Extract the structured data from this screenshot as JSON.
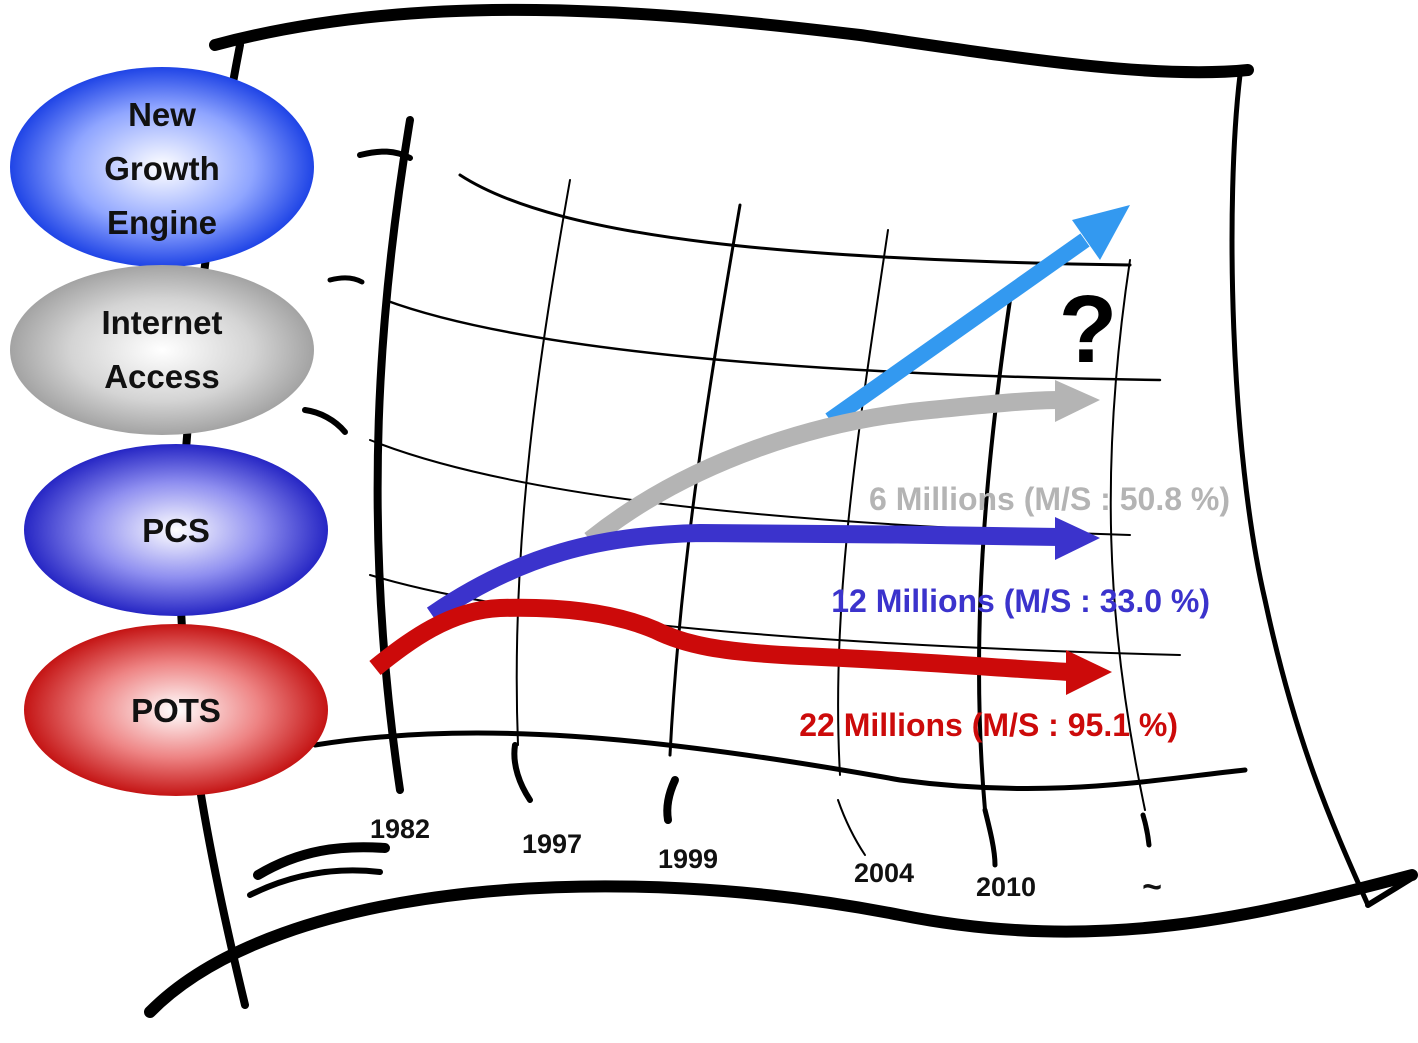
{
  "categories": [
    {
      "id": "new-growth",
      "lines": [
        "New",
        "Growth",
        "Engine"
      ],
      "color": "#3355ee"
    },
    {
      "id": "internet",
      "lines": [
        "Internet",
        "Access"
      ],
      "color": "#a0a0a0"
    },
    {
      "id": "pcs",
      "lines": [
        "PCS"
      ],
      "color": "#3333cc"
    },
    {
      "id": "pots",
      "lines": [
        "POTS"
      ],
      "color": "#cc1111"
    }
  ],
  "years": [
    "1982",
    "1997",
    "1999",
    "2004",
    "2010",
    "~"
  ],
  "callouts": {
    "internet": "6 Millions (M/S : 50.8 %)",
    "pcs": "12 Millions (M/S : 33.0 %)",
    "pots": "22 Millions (M/S : 95.1 %)"
  },
  "question_mark": "?",
  "colors": {
    "new_growth_arrow": "#3399f0",
    "internet_arrow": "#b4b4b4",
    "pcs_arrow": "#3b33cc",
    "pots_arrow": "#cc0a0a"
  }
}
